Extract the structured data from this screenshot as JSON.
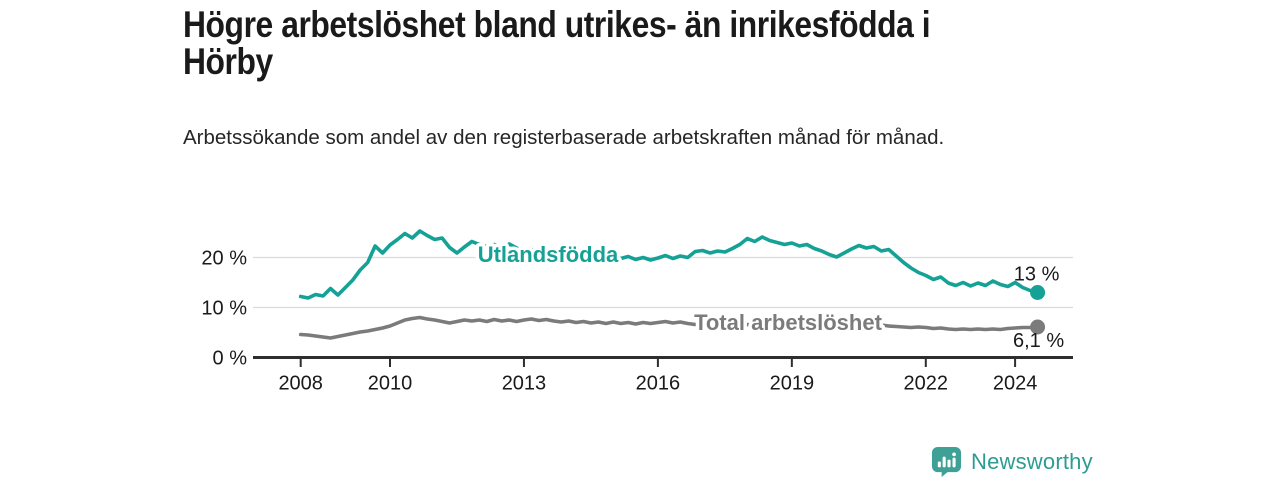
{
  "header": {
    "title_line1": "Högre arbetslöshet bland utrikes- än inrikesfödda i",
    "title_line2": "Hörby",
    "subtitle": "Arbetssökande som andel av den registerbaserade arbetskraften månad för månad."
  },
  "footer": {
    "brand": "Newsworthy",
    "logo_icon": "bar-chart-speech-bubble-icon"
  },
  "colors": {
    "foreign_born_line": "#15a195",
    "total_line": "#7b7b7b",
    "grid": "#dbdbdb",
    "axis": "#2e2e2e",
    "text": "#1a1a1a",
    "brand_teal": "#2d9c92",
    "logo_bg": "#3fa096"
  },
  "chart_data": {
    "type": "line",
    "title": "Högre arbetslöshet bland utrikes- än inrikesfödda i Hörby",
    "subtitle": "Arbetssökande som andel av den registerbaserade arbetskraften månad för månad.",
    "unit": "%",
    "x_start_year": 2008.0,
    "x_step_years": 0.1667,
    "xlim": [
      2008,
      2025
    ],
    "ylim": [
      0,
      26
    ],
    "grid": "horizontal",
    "y_ticks": [
      0,
      10,
      20
    ],
    "y_tick_labels": [
      "0 %",
      "10 %",
      "20 %"
    ],
    "x_tick_years": [
      2008,
      2010,
      2013,
      2016,
      2019,
      2022,
      2024
    ],
    "x_tick_labels": [
      "2008",
      "2010",
      "2013",
      "2016",
      "2019",
      "2022",
      "2024"
    ],
    "series": [
      {
        "name": "Utlandsfödda",
        "color": "#15a195",
        "end_label": "13 %",
        "end_value": 13.0,
        "values": [
          12.2,
          11.9,
          12.6,
          12.3,
          13.8,
          12.5,
          14.0,
          15.5,
          17.5,
          19.0,
          22.3,
          20.9,
          22.5,
          23.6,
          24.8,
          23.9,
          25.3,
          24.4,
          23.6,
          23.9,
          22.0,
          20.9,
          22.1,
          23.2,
          22.6,
          22.2,
          22.6,
          21.8,
          22.7,
          21.9,
          21.3,
          21.6,
          21.0,
          20.7,
          21.1,
          20.6,
          20.9,
          20.4,
          20.7,
          20.2,
          20.5,
          20.1,
          20.3,
          19.8,
          20.2,
          19.6,
          20.0,
          19.5,
          19.9,
          20.4,
          19.8,
          20.3,
          20.0,
          21.2,
          21.4,
          20.9,
          21.3,
          21.1,
          21.8,
          22.6,
          23.8,
          23.2,
          24.1,
          23.4,
          23.0,
          22.6,
          22.9,
          22.3,
          22.6,
          21.8,
          21.3,
          20.6,
          20.1,
          20.9,
          21.7,
          22.4,
          21.9,
          22.2,
          21.3,
          21.6,
          20.3,
          19.0,
          17.9,
          17.0,
          16.4,
          15.6,
          16.1,
          14.9,
          14.4,
          15.0,
          14.3,
          14.9,
          14.4,
          15.3,
          14.6,
          14.2,
          15.0,
          14.0,
          13.4,
          13.0
        ]
      },
      {
        "name": "Total arbetslöshet",
        "color": "#7b7b7b",
        "end_label": "6,1 %",
        "end_value": 6.1,
        "values": [
          4.6,
          4.5,
          4.3,
          4.1,
          3.9,
          4.2,
          4.5,
          4.8,
          5.1,
          5.3,
          5.6,
          5.9,
          6.3,
          6.9,
          7.5,
          7.8,
          8.0,
          7.7,
          7.5,
          7.2,
          6.9,
          7.2,
          7.5,
          7.3,
          7.5,
          7.2,
          7.6,
          7.3,
          7.5,
          7.2,
          7.5,
          7.7,
          7.4,
          7.6,
          7.3,
          7.1,
          7.3,
          7.0,
          7.2,
          6.9,
          7.1,
          6.8,
          7.1,
          6.8,
          7.0,
          6.7,
          7.0,
          6.8,
          7.0,
          7.2,
          6.9,
          7.1,
          6.8,
          6.6,
          6.8,
          6.5,
          6.7,
          6.4,
          6.6,
          6.4,
          6.6,
          6.3,
          6.5,
          6.2,
          6.4,
          6.2,
          6.3,
          6.1,
          6.3,
          6.0,
          6.2,
          6.1,
          6.3,
          6.6,
          6.8,
          6.7,
          6.5,
          6.4,
          6.5,
          6.3,
          6.2,
          6.1,
          6.0,
          6.1,
          6.0,
          5.8,
          5.9,
          5.7,
          5.6,
          5.7,
          5.6,
          5.7,
          5.6,
          5.7,
          5.6,
          5.8,
          5.9,
          6.0,
          6.0,
          6.1
        ]
      }
    ],
    "legend_position": "inline-labels"
  }
}
